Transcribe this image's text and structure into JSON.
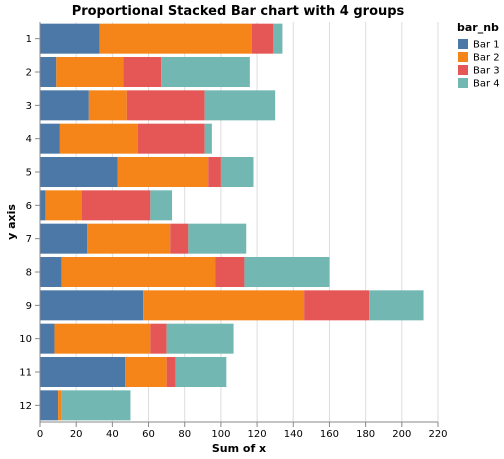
{
  "chart_data": {
    "type": "bar",
    "orientation": "horizontal",
    "stacked": true,
    "title": "Proportional Stacked Bar chart with 4 groups",
    "xlabel": "Sum of x",
    "ylabel": "y axis",
    "xlim": [
      0,
      220
    ],
    "x_ticks": [
      0,
      20,
      40,
      60,
      80,
      100,
      120,
      140,
      160,
      180,
      200,
      220
    ],
    "grid": true,
    "legend": {
      "title": "bar_nb",
      "position": "top-right"
    },
    "categories": [
      "1",
      "2",
      "3",
      "4",
      "5",
      "6",
      "7",
      "8",
      "9",
      "10",
      "11",
      "12"
    ],
    "series": [
      {
        "name": "Bar 1",
        "color": "#4c78a8",
        "values": [
          33,
          9,
          27,
          11,
          43,
          3,
          26,
          12,
          57,
          8,
          47,
          10
        ]
      },
      {
        "name": "Bar 2",
        "color": "#f58518",
        "values": [
          84,
          37,
          21,
          43,
          50,
          20,
          46,
          85,
          89,
          53,
          23,
          2
        ]
      },
      {
        "name": "Bar 3",
        "color": "#e45756",
        "values": [
          12,
          21,
          43,
          37,
          7,
          38,
          10,
          16,
          36,
          9,
          5,
          0
        ]
      },
      {
        "name": "Bar 4",
        "color": "#72b7b2",
        "values": [
          5,
          49,
          39,
          4,
          18,
          12,
          32,
          47,
          30,
          37,
          28,
          38
        ]
      }
    ]
  }
}
